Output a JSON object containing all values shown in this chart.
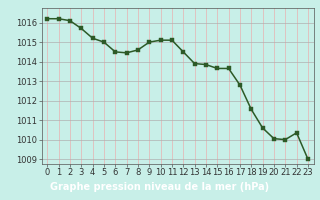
{
  "x": [
    0,
    1,
    2,
    3,
    4,
    5,
    6,
    7,
    8,
    9,
    10,
    11,
    12,
    13,
    14,
    15,
    16,
    17,
    18,
    19,
    20,
    21,
    22,
    23
  ],
  "y": [
    1016.2,
    1016.2,
    1016.1,
    1015.7,
    1015.2,
    1015.0,
    1014.5,
    1014.45,
    1014.6,
    1015.0,
    1015.1,
    1015.1,
    1014.5,
    1013.9,
    1013.85,
    1013.65,
    1013.65,
    1012.8,
    1011.55,
    1010.6,
    1010.05,
    1010.0,
    1010.35,
    1009.0
  ],
  "line_color": "#2d5a27",
  "marker_color": "#2d5a27",
  "bg_color": "#c8efe8",
  "grid_color_h": "#b0b0b0",
  "grid_color_v": "#e8b0b0",
  "xlabel": "Graphe pression niveau de la mer (hPa)",
  "xlabel_color": "white",
  "xlabel_bg": "#3a7a30",
  "ylim": [
    1008.75,
    1016.75
  ],
  "yticks": [
    1009,
    1010,
    1011,
    1012,
    1013,
    1014,
    1015,
    1016
  ],
  "xticks": [
    0,
    1,
    2,
    3,
    4,
    5,
    6,
    7,
    8,
    9,
    10,
    11,
    12,
    13,
    14,
    15,
    16,
    17,
    18,
    19,
    20,
    21,
    22,
    23
  ],
  "tick_fontsize": 6.0,
  "xlabel_fontsize": 7.0,
  "marker_size": 2.5,
  "line_width": 1.1
}
